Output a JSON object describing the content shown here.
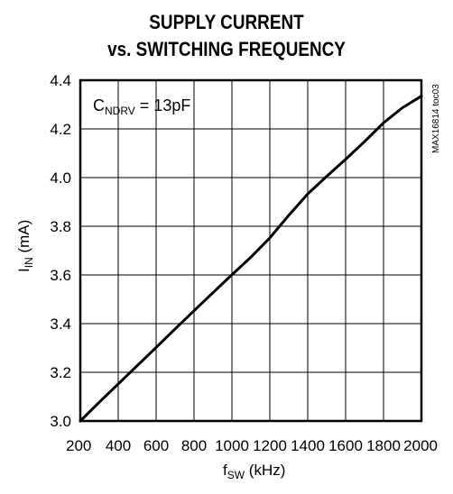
{
  "chart_data": {
    "type": "line",
    "title": "SUPPLY CURRENT",
    "subtitle": "vs. SWITCHING FREQUENCY",
    "xlabel": {
      "main": "f",
      "sub": "SW",
      "unit": " (kHz)"
    },
    "ylabel": {
      "main": "I",
      "sub": "IN",
      "unit": " (mA)"
    },
    "xlim": [
      200,
      2000
    ],
    "ylim": [
      3.0,
      4.4
    ],
    "xticks": [
      200,
      400,
      600,
      800,
      1000,
      1200,
      1400,
      1600,
      1800,
      2000
    ],
    "xtick_labels": [
      "200",
      "400",
      "600",
      "800",
      "1000",
      "1200",
      "1400",
      "1600",
      "1800",
      "2000"
    ],
    "yticks": [
      3.0,
      3.2,
      3.4,
      3.6,
      3.8,
      4.0,
      4.2,
      4.4
    ],
    "ytick_labels": [
      "3.0",
      "3.2",
      "3.4",
      "3.6",
      "3.8",
      "4.0",
      "4.2",
      "4.4"
    ],
    "grid": true,
    "annotation": {
      "main": "C",
      "sub": "NDRV",
      "rest": " = 13pF"
    },
    "figure_code": "MAX16814 toc03",
    "series": [
      {
        "x": [
          200,
          300,
          400,
          500,
          600,
          700,
          800,
          900,
          1000,
          1100,
          1200,
          1300,
          1400,
          1500,
          1600,
          1700,
          1800,
          1900,
          2000
        ],
        "y": [
          3.0,
          3.077,
          3.152,
          3.227,
          3.302,
          3.378,
          3.453,
          3.527,
          3.601,
          3.673,
          3.752,
          3.845,
          3.933,
          4.005,
          4.075,
          4.148,
          4.225,
          4.287,
          4.335
        ]
      }
    ]
  }
}
